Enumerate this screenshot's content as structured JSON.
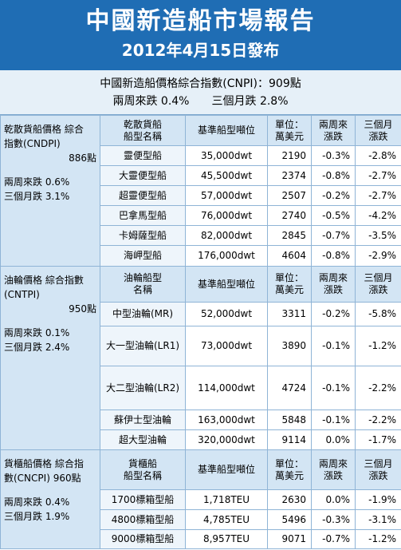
{
  "header": {
    "title": "中國新造船市場報告",
    "date": "2012年4月15日發布"
  },
  "summary": {
    "index": "中國新造船價格綜合指數(CNPI)：909點",
    "two_weeks": "兩周來跌 0.4%",
    "three_months": "三個月跌 2.8%"
  },
  "sections": [
    {
      "label": [
        "乾散貨船價格 綜合",
        "指數(CNDPI)",
        "886點",
        "兩周來跌 0.6%",
        "三個月跌 3.1%"
      ],
      "header": [
        [
          "乾散貨船",
          "船型名稱"
        ],
        [
          "基準船型噸位"
        ],
        [
          "單位：",
          "萬美元"
        ],
        [
          "兩周來",
          "漲跌"
        ],
        [
          "三個月",
          "漲跌"
        ]
      ],
      "rows": [
        [
          "靈便型船",
          "35,000dwt",
          "2190",
          "-0.3%",
          "-2.8%"
        ],
        [
          "大靈便型船",
          "45,500dwt",
          "2374",
          "-0.8%",
          "-2.7%"
        ],
        [
          "超靈便型船",
          "57,000dwt",
          "2507",
          "-0.2%",
          "-2.7%"
        ],
        [
          "巴拿馬型船",
          "76,000dwt",
          "2740",
          "-0.5%",
          "-4.2%"
        ],
        [
          "卡姆薩型船",
          "82,000dwt",
          "2845",
          "-0.7%",
          "-3.5%"
        ],
        [
          "海岬型船",
          "176,000dwt",
          "4604",
          "-0.8%",
          "-2.9%"
        ]
      ]
    },
    {
      "label": [
        "油輪價格 綜合指數",
        "(CNTPI)",
        "950點",
        "兩周來跌 0.1%",
        "三個月跌 2.4%"
      ],
      "header": [
        [
          "油輪船型",
          "名稱"
        ],
        [
          "基準船型噸位"
        ],
        [
          "單位：",
          "萬美元"
        ],
        [
          "兩周來",
          "漲跌"
        ],
        [
          "三個月",
          "漲跌"
        ]
      ],
      "rows": [
        [
          "中型油輪(MR)",
          "52,000dwt",
          "3311",
          "-0.2%",
          "-5.8%"
        ],
        [
          "大一型油輪(LR1)",
          "73,000dwt",
          "3890",
          "-0.1%",
          "-1.2%"
        ],
        [
          "大二型油輪(LR2)",
          "114,000dwt",
          "4724",
          "-0.1%",
          "-2.2%"
        ],
        [
          "蘇伊士型油輪",
          "163,000dwt",
          "5848",
          "-0.1%",
          "-2.2%"
        ],
        [
          "超大型油輪",
          "320,000dwt",
          "9114",
          "0.0%",
          "-1.7%"
        ]
      ]
    },
    {
      "label": [
        "貨櫃船價格 綜合指",
        "數(CNCPI) 960點",
        "兩周來跌 0.4%",
        "三個月跌 1.9%"
      ],
      "header": [
        [
          "貨櫃船",
          "船型名稱"
        ],
        [
          "基準船型噸位"
        ],
        [
          "單位：",
          "萬美元"
        ],
        [
          "兩周來",
          "漲跌"
        ],
        [
          "三個月",
          "漲跌"
        ]
      ],
      "rows": [
        [
          "1700標箱型船",
          "1,718TEU",
          "2630",
          "0.0%",
          "-1.9%"
        ],
        [
          "4800標箱型船",
          "4,785TEU",
          "5496",
          "-0.3%",
          "-3.1%"
        ],
        [
          "9000標箱型船",
          "8,957TEU",
          "9071",
          "-0.7%",
          "-1.2%"
        ]
      ]
    }
  ]
}
